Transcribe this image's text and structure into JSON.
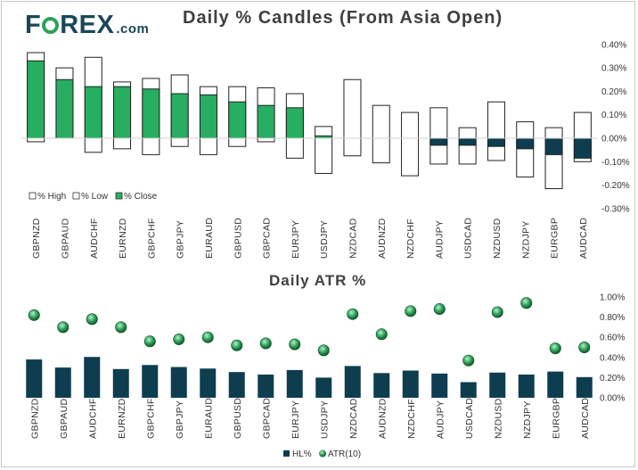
{
  "brand": {
    "logo_text_pre": "F",
    "logo_text_post": "REX",
    "logo_suffix": ".com",
    "color_brand": "#1a4757",
    "color_accent": "#2ea25a"
  },
  "chart_data": [
    {
      "type": "bar",
      "subtype": "floating-range-candles",
      "title": "Daily % Candles (From Asia Open)",
      "categories": [
        "GBPNZD",
        "GBPAUD",
        "AUDCHF",
        "EURNZD",
        "GBPCHF",
        "GBPJPY",
        "EURAUD",
        "GBPUSD",
        "GBPCAD",
        "EURJPY",
        "USDJPY",
        "NZDCAD",
        "AUDNZD",
        "NZDCHF",
        "AUDJPY",
        "USDCAD",
        "NZDUSD",
        "NZDJPY",
        "EURGBP",
        "AUDCAD"
      ],
      "series": [
        {
          "name": "% High",
          "values": [
            0.365,
            0.3,
            0.345,
            0.24,
            0.255,
            0.27,
            0.22,
            0.22,
            0.215,
            0.19,
            0.05,
            0.25,
            0.14,
            0.11,
            0.13,
            0.045,
            0.155,
            0.07,
            0.045,
            0.11
          ]
        },
        {
          "name": "% Low",
          "values": [
            -0.015,
            0.0,
            -0.06,
            -0.045,
            -0.07,
            -0.035,
            -0.07,
            -0.035,
            -0.015,
            -0.085,
            -0.15,
            -0.075,
            -0.105,
            -0.16,
            -0.11,
            -0.11,
            -0.095,
            -0.165,
            -0.215,
            -0.1
          ]
        },
        {
          "name": "% Close",
          "values": [
            0.33,
            0.25,
            0.22,
            0.22,
            0.21,
            0.19,
            0.185,
            0.155,
            0.14,
            0.13,
            0.01,
            0.0,
            0.0,
            0.0,
            -0.03,
            -0.03,
            -0.035,
            -0.045,
            -0.07,
            -0.085
          ]
        }
      ],
      "ylim": [
        -0.3,
        0.4
      ],
      "yticks": [
        "0.40%",
        "0.30%",
        "0.20%",
        "0.10%",
        "0.00%",
        "-0.10%",
        "-0.20%",
        "-0.30%"
      ],
      "legend_position": "bottom-left",
      "colors": {
        "close_up": "#27ae60",
        "close_down": "#0e3d50",
        "box_edge": "#222222"
      }
    },
    {
      "type": "bar",
      "subtype": "bar-with-markers",
      "title": "Daily ATR %",
      "categories": [
        "GBPNZD",
        "GBPAUD",
        "AUDCHF",
        "EURNZD",
        "GBPCHF",
        "GBPJPY",
        "EURAUD",
        "GBPUSD",
        "GBPCAD",
        "EURJPY",
        "USDJPY",
        "NZDCAD",
        "AUDNZD",
        "NZDCHF",
        "AUDJPY",
        "USDCAD",
        "NZDUSD",
        "NZDJPY",
        "EURGBP",
        "AUDCAD"
      ],
      "series": [
        {
          "name": "HL%",
          "values": [
            0.38,
            0.3,
            0.405,
            0.285,
            0.325,
            0.305,
            0.29,
            0.255,
            0.23,
            0.275,
            0.2,
            0.315,
            0.245,
            0.27,
            0.24,
            0.155,
            0.25,
            0.23,
            0.26,
            0.205
          ]
        },
        {
          "name": "ATR(10)",
          "values": [
            0.82,
            0.7,
            0.78,
            0.7,
            0.56,
            0.58,
            0.6,
            0.52,
            0.54,
            0.53,
            0.47,
            0.83,
            0.63,
            0.86,
            0.88,
            0.37,
            0.85,
            0.94,
            0.49,
            0.5
          ]
        }
      ],
      "ylim": [
        0.0,
        1.0
      ],
      "yticks": [
        "1.00%",
        "0.80%",
        "0.60%",
        "0.40%",
        "0.20%",
        "0.00%"
      ],
      "legend_position": "bottom-center",
      "colors": {
        "bar": "#0e3d50",
        "marker": "#2ea25a"
      }
    }
  ]
}
